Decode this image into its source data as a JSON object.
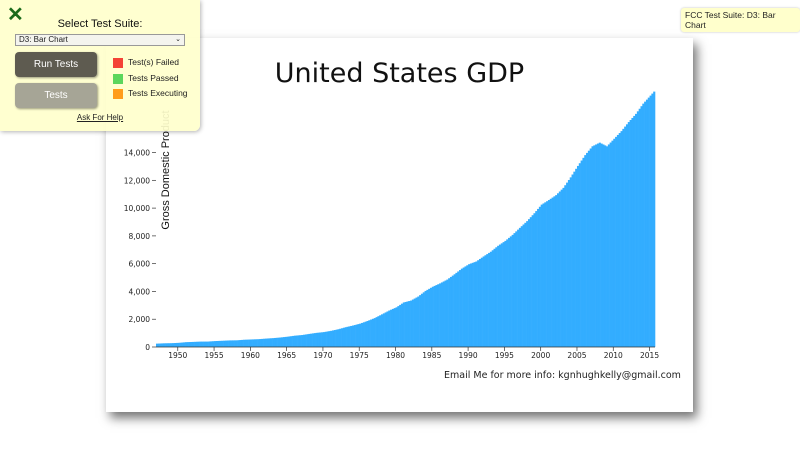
{
  "fcc_badge": "FCC Test Suite: D3: Bar Chart",
  "panel": {
    "close_icon": "x-icon",
    "suite_label": "Select Test Suite:",
    "suite_selected": "D3: Bar Chart",
    "run_tests": "Run Tests",
    "tests": "Tests",
    "legend": [
      {
        "label": "Test(s) Failed",
        "color": "#f44336"
      },
      {
        "label": "Tests Passed",
        "color": "#5cd65c"
      },
      {
        "label": "Tests Executing",
        "color": "#ff9c1a"
      }
    ],
    "help": "Ask For Help"
  },
  "email": "Email Me for more info: kgnhughkelly@gmail.com",
  "chart_data": {
    "type": "bar",
    "title": "United States GDP",
    "ylabel": "Gross Domestic Product",
    "xlabel": "",
    "bar_color": "#33adff",
    "ylim": [
      0,
      18000
    ],
    "xlim": [
      1947,
      2015.75
    ],
    "x_ticks": [
      "1950",
      "1955",
      "1960",
      "1965",
      "1970",
      "1975",
      "1980",
      "1985",
      "1990",
      "1995",
      "2000",
      "2005",
      "2010",
      "2015"
    ],
    "y_ticks": [
      "0",
      "2,000",
      "4,000",
      "6,000",
      "8,000",
      "10,000",
      "12,000",
      "14,000"
    ],
    "years": [
      1947,
      1948,
      1949,
      1950,
      1951,
      1952,
      1953,
      1954,
      1955,
      1956,
      1957,
      1958,
      1959,
      1960,
      1961,
      1962,
      1963,
      1964,
      1965,
      1966,
      1967,
      1968,
      1969,
      1970,
      1971,
      1972,
      1973,
      1974,
      1975,
      1976,
      1977,
      1978,
      1979,
      1980,
      1981,
      1982,
      1983,
      1984,
      1985,
      1986,
      1987,
      1988,
      1989,
      1990,
      1991,
      1992,
      1993,
      1994,
      1995,
      1996,
      1997,
      1998,
      1999,
      2000,
      2001,
      2002,
      2003,
      2004,
      2005,
      2006,
      2007,
      2008,
      2009,
      2010,
      2011,
      2012,
      2013,
      2014,
      2015
    ],
    "values": [
      243,
      266,
      275,
      300,
      347,
      367,
      389,
      391,
      426,
      449,
      474,
      481,
      522,
      543,
      563,
      605,
      639,
      685,
      743,
      815,
      862,
      943,
      1019,
      1073,
      1165,
      1279,
      1425,
      1545,
      1684,
      1873,
      2082,
      2352,
      2627,
      2857,
      3207,
      3343,
      3634,
      4037,
      4339,
      4580,
      4855,
      5236,
      5642,
      5963,
      6158,
      6520,
      6859,
      7287,
      7640,
      8073,
      8578,
      9063,
      9631,
      10252,
      10582,
      10936,
      11458,
      12214,
      13037,
      13815,
      14452,
      14713,
      14449,
      14992,
      15543,
      16197,
      16785,
      17522,
      18100
    ]
  }
}
